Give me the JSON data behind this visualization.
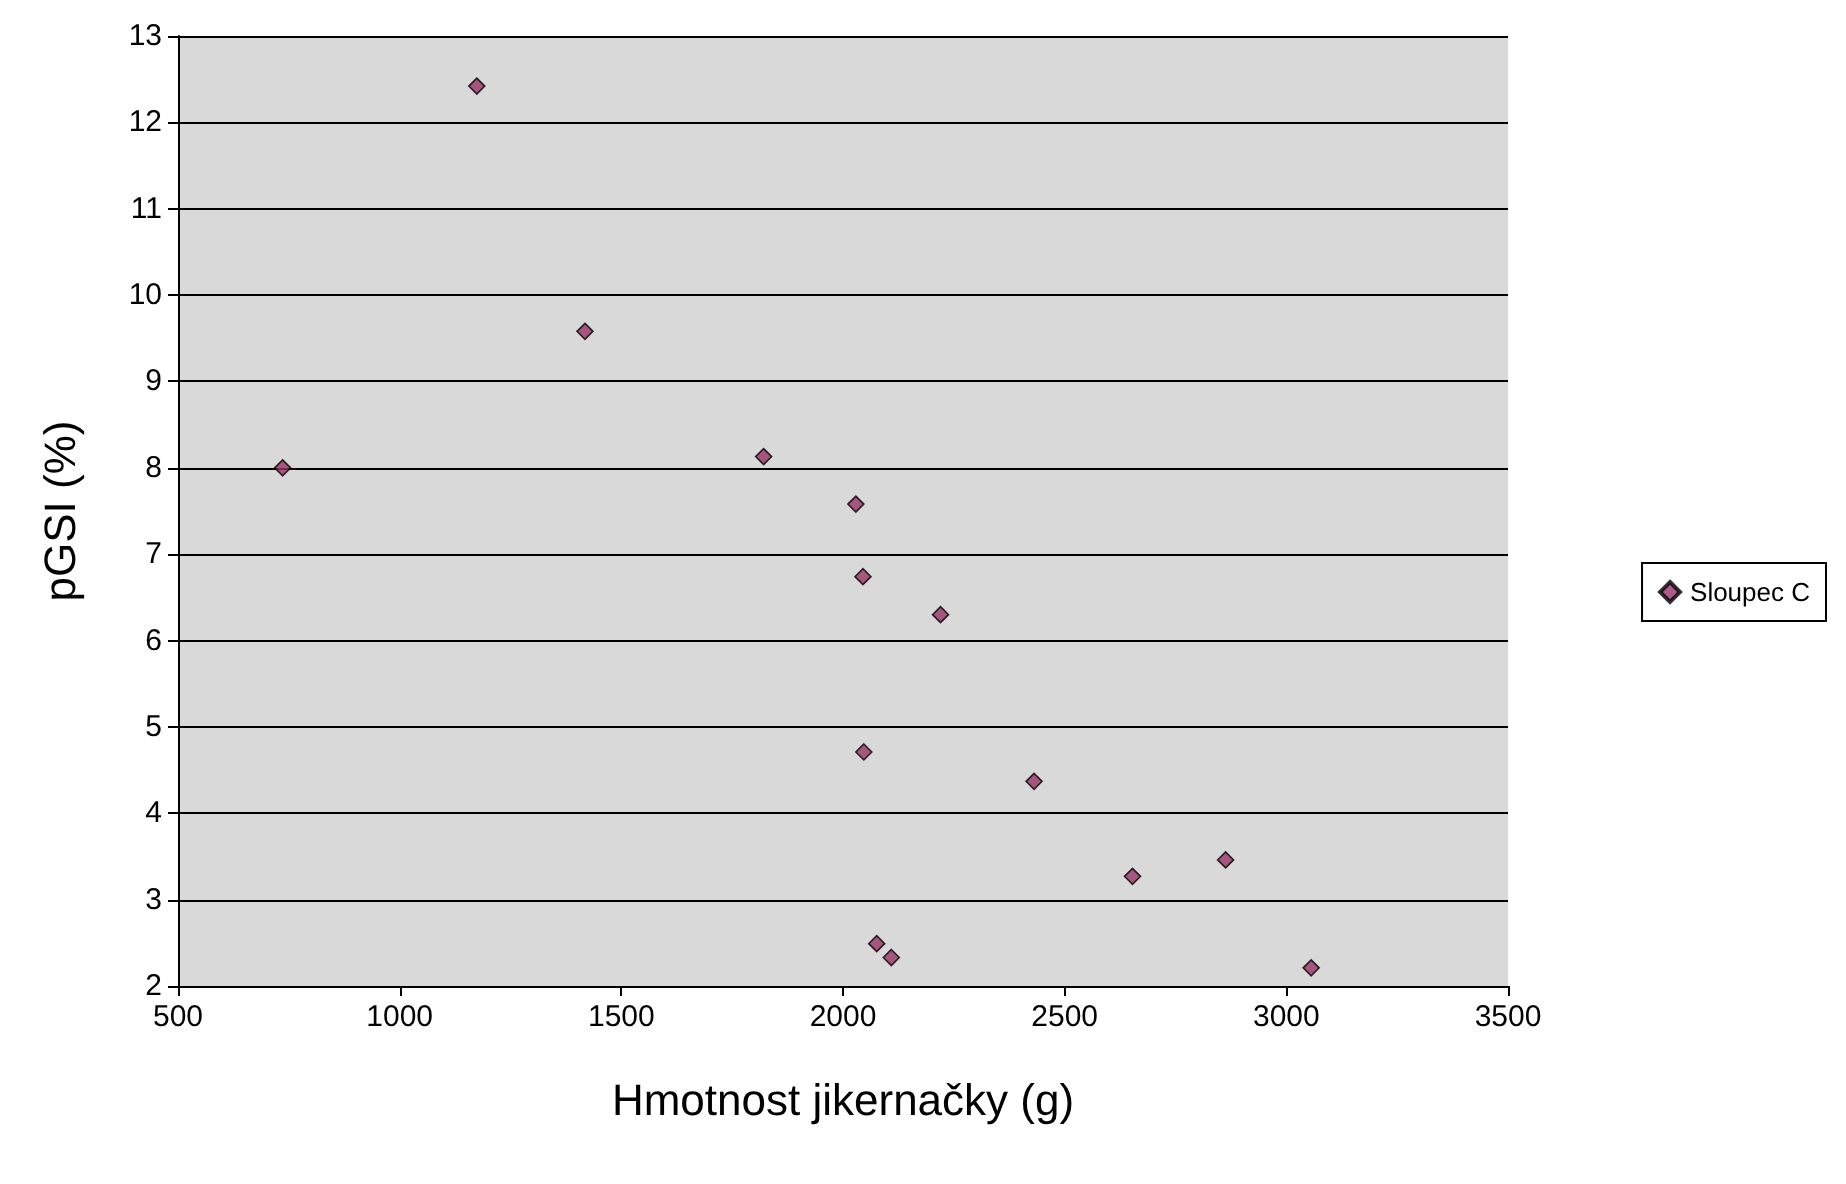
{
  "chart_data": {
    "type": "scatter",
    "xlabel": "Hmotnost jikernačky (g)",
    "ylabel": "pGSI (%)",
    "x": [
      736,
      1174,
      1418,
      1821,
      2029,
      2045,
      2220,
      2047,
      2431,
      2653,
      2863,
      2076,
      2109,
      3056
    ],
    "series": [
      {
        "name": "Sloupec C",
        "color": "#993366",
        "values": [
          8.0,
          12.42,
          9.58,
          8.13,
          7.58,
          6.74,
          6.3,
          4.71,
          4.37,
          3.27,
          3.46,
          2.49,
          2.33,
          2.21
        ]
      }
    ],
    "xlim": [
      500,
      3500
    ],
    "xticks": [
      500,
      1000,
      1500,
      2000,
      2500,
      3000,
      3500
    ],
    "ylim": [
      2,
      13
    ],
    "yticks": [
      2,
      3,
      4,
      5,
      6,
      7,
      8,
      9,
      10,
      11,
      12,
      13
    ],
    "grid": "y",
    "legend": "right",
    "marker": "diamond"
  }
}
